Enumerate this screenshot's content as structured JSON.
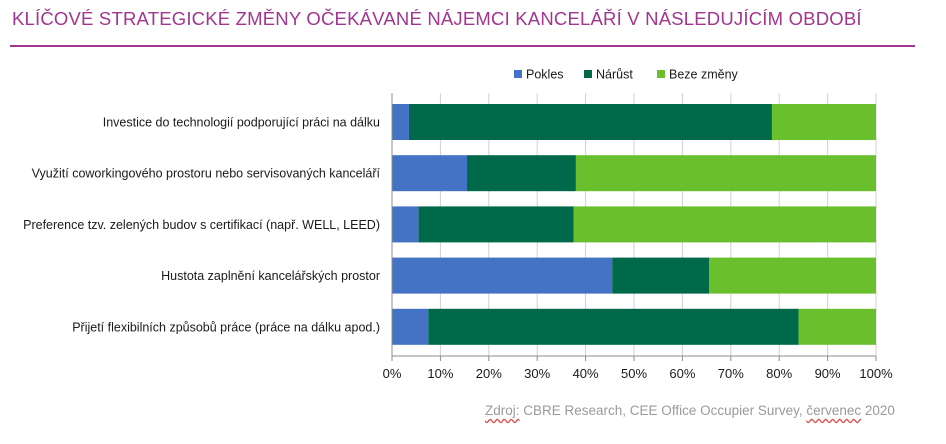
{
  "title": "KLÍČOVÉ STRATEGICKÉ ZMĚNY OČEKÁVANÉ NÁJEMCI KANCELÁŘÍ V NÁSLEDUJÍCÍM OBDOBÍ",
  "source": {
    "label": "Zdroj:",
    "text_a": " CBRE Research, CEE Office Occupier Survey, ",
    "date_word": "červenec",
    "text_b": " 2020"
  },
  "colors": {
    "title": "#a2358f",
    "pokles": "#4472c4",
    "narust": "#00694a",
    "beze_zmeny": "#6abf2d"
  },
  "chart_data": {
    "type": "bar",
    "orientation": "horizontal",
    "stacked": true,
    "title": "KLÍČOVÉ STRATEGICKÉ ZMĚNY OČEKÁVANÉ NÁJEMCI KANCELÁŘÍ V NÁSLEDUJÍCÍM OBDOBÍ",
    "xlabel": "",
    "ylabel": "",
    "xlim": [
      0,
      100
    ],
    "x_ticks": [
      "0%",
      "10%",
      "20%",
      "30%",
      "40%",
      "50%",
      "60%",
      "70%",
      "80%",
      "90%",
      "100%"
    ],
    "grid": true,
    "legend_position": "top",
    "categories": [
      "Investice do technologií podporující práci na dálku",
      "Využití coworkingového prostoru nebo servisovaných kanceláří",
      "Preference tzv. zelených budov s certifikací (např. WELL, LEED)",
      "Hustota zaplnění kancelářských prostor",
      "Přijetí flexibilních způsobů práce (práce na dálku apod.)"
    ],
    "series": [
      {
        "name": "Pokles",
        "color": "#4472c4",
        "values": [
          3.5,
          15.5,
          5.5,
          45.5,
          7.5
        ]
      },
      {
        "name": "Nárůst",
        "color": "#00694a",
        "values": [
          75.0,
          22.5,
          32.0,
          20.0,
          76.5
        ]
      },
      {
        "name": "Beze změny",
        "color": "#6abf2d",
        "values": [
          21.5,
          62.0,
          62.5,
          34.5,
          16.0
        ]
      }
    ]
  }
}
